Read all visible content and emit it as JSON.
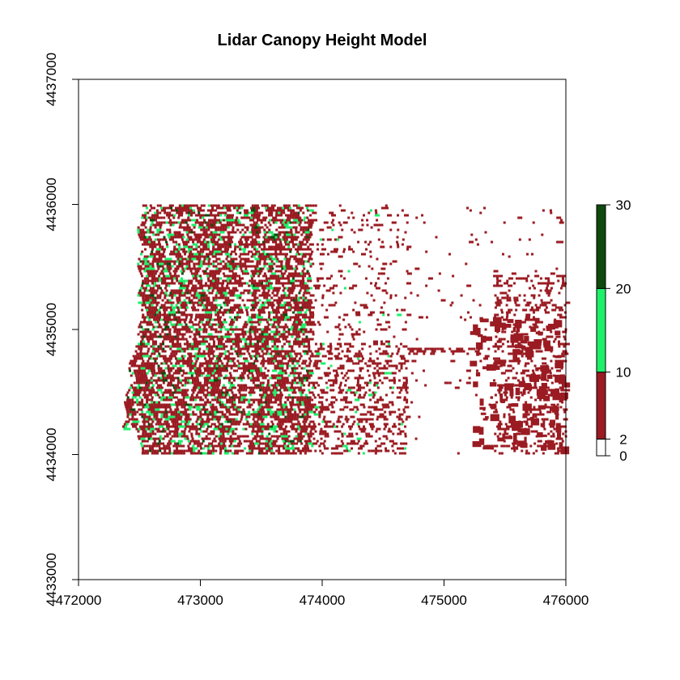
{
  "chart_data": {
    "type": "heatmap",
    "title": "Lidar Canopy Height Model",
    "xlabel": "",
    "ylabel": "",
    "xlim": [
      472000,
      476000
    ],
    "ylim": [
      4433000,
      4437000
    ],
    "x_ticks": [
      "472000",
      "473000",
      "474000",
      "475000",
      "476000"
    ],
    "y_ticks": [
      "4433000",
      "4434000",
      "4435000",
      "4436000",
      "4437000"
    ],
    "x_tick_values": [
      472000,
      473000,
      474000,
      475000,
      476000
    ],
    "y_tick_values": [
      4433000,
      4434000,
      4435000,
      4436000,
      4437000
    ],
    "raster_extent": {
      "xmin": 472340,
      "xmax": 476000,
      "ymin": 4434000,
      "ymax": 4436000
    },
    "grid": false,
    "legend": {
      "placement": "right",
      "breaks": [
        0,
        2,
        10,
        20,
        30
      ],
      "labels": [
        "0",
        "2",
        "10",
        "20",
        "30"
      ],
      "classes": [
        {
          "from": 0,
          "to": 2,
          "color": "#ffffff"
        },
        {
          "from": 2,
          "to": 10,
          "color": "#9b1b22"
        },
        {
          "from": 10,
          "to": 20,
          "color": "#1ef06a"
        },
        {
          "from": 20,
          "to": 30,
          "color": "#0e4a0e"
        }
      ]
    }
  }
}
